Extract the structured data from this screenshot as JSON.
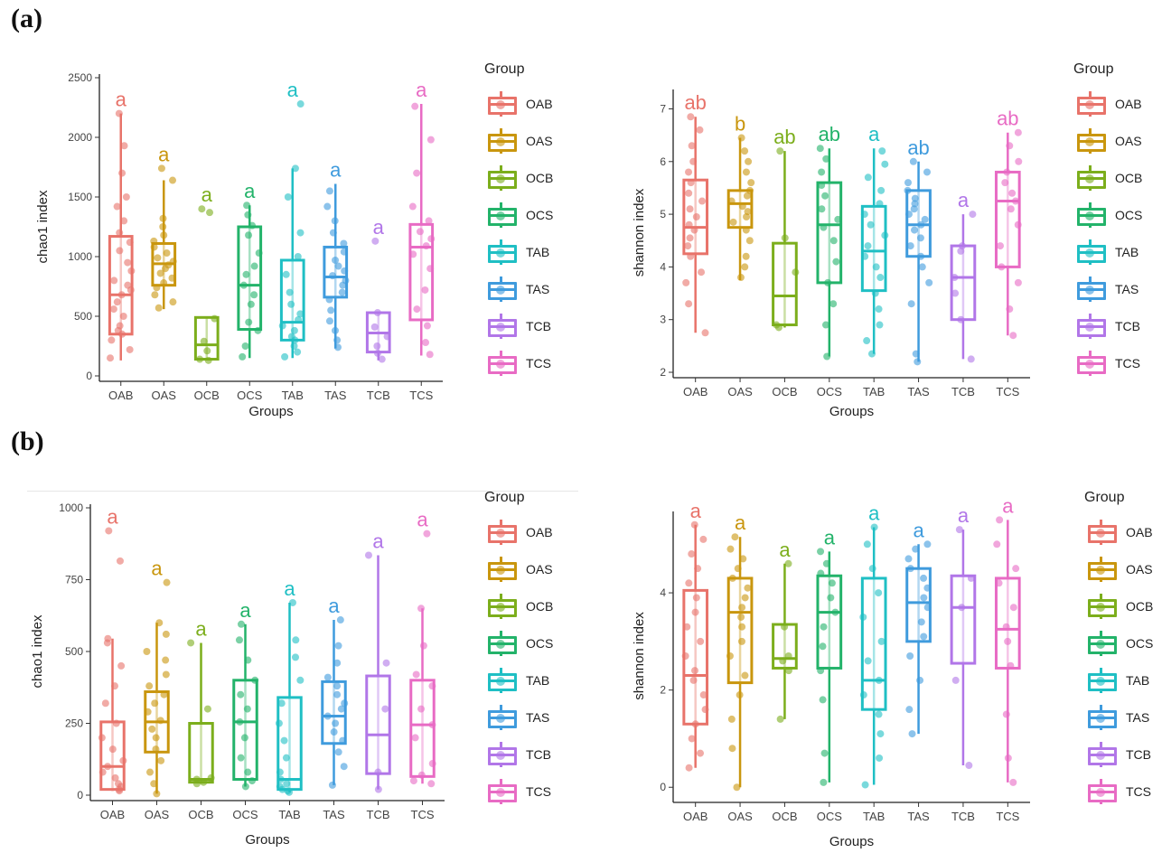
{
  "labels": {
    "a": "(a)",
    "b": "(b)"
  },
  "legend": {
    "title": "Group",
    "items": [
      "OAB",
      "OAS",
      "OCB",
      "OCS",
      "TAB",
      "TAS",
      "TCB",
      "TCS"
    ]
  },
  "colors": {
    "OAB": "#E8736A",
    "OAS": "#C9960E",
    "OCB": "#7CAE1C",
    "OCS": "#23B36A",
    "TAB": "#1FBFC4",
    "TAS": "#3F9BDD",
    "TCB": "#B176E8",
    "TCS": "#E86BC4"
  },
  "chart_data": [
    {
      "id": "a-chao1",
      "type": "boxplot",
      "xlabel": "Groups",
      "ylabel": "chao1 index",
      "ylim": [
        0,
        2500
      ],
      "yticks": [
        0,
        500,
        1000,
        1500,
        2000,
        2500
      ],
      "categories": [
        "OAB",
        "OAS",
        "OCB",
        "OCS",
        "TAB",
        "TAS",
        "TCB",
        "TCS"
      ],
      "boxes": [
        {
          "min": 130,
          "q1": 350,
          "median": 680,
          "q3": 1170,
          "max": 2200,
          "letter": "a",
          "points": [
            150,
            220,
            300,
            350,
            380,
            420,
            500,
            560,
            620,
            680,
            720,
            760,
            800,
            880,
            950,
            1050,
            1120,
            1200,
            1300,
            1420,
            1500,
            1700,
            1930,
            2200
          ]
        },
        {
          "min": 560,
          "q1": 760,
          "median": 940,
          "q3": 1110,
          "max": 1640,
          "letter": "a",
          "points": [
            570,
            620,
            680,
            740,
            780,
            820,
            860,
            900,
            930,
            960,
            990,
            1030,
            1080,
            1130,
            1180,
            1250,
            1320,
            1640,
            1740
          ]
        },
        {
          "min": 130,
          "q1": 140,
          "median": 260,
          "q3": 490,
          "max": 490,
          "letter": "a",
          "points": [
            130,
            140,
            210,
            290,
            480,
            1370,
            1400
          ]
        },
        {
          "min": 150,
          "q1": 390,
          "median": 760,
          "q3": 1250,
          "max": 1430,
          "letter": "a",
          "points": [
            160,
            250,
            380,
            450,
            600,
            680,
            760,
            850,
            920,
            1030,
            1180,
            1260,
            1350,
            1430
          ]
        },
        {
          "min": 150,
          "q1": 300,
          "median": 450,
          "q3": 970,
          "max": 1740,
          "letter": "a",
          "points": [
            160,
            200,
            250,
            300,
            330,
            380,
            420,
            470,
            520,
            600,
            700,
            850,
            1000,
            1200,
            1500,
            1740,
            2280
          ]
        },
        {
          "min": 230,
          "q1": 660,
          "median": 830,
          "q3": 1080,
          "max": 1610,
          "letter": "a",
          "points": [
            240,
            300,
            380,
            460,
            550,
            640,
            700,
            760,
            800,
            840,
            880,
            920,
            970,
            1040,
            1110,
            1200,
            1300,
            1420,
            1550
          ]
        },
        {
          "min": 130,
          "q1": 200,
          "median": 360,
          "q3": 530,
          "max": 530,
          "letter": "a",
          "points": [
            140,
            190,
            250,
            330,
            410,
            530,
            1130
          ]
        },
        {
          "min": 170,
          "q1": 470,
          "median": 1080,
          "q3": 1270,
          "max": 2280,
          "letter": "a",
          "points": [
            180,
            280,
            420,
            560,
            720,
            900,
            1020,
            1090,
            1150,
            1210,
            1300,
            1420,
            1700,
            1980,
            2260
          ]
        }
      ]
    },
    {
      "id": "a-shannon",
      "type": "boxplot",
      "xlabel": "Groups",
      "ylabel": "shannon index",
      "ylim": [
        2,
        7.3
      ],
      "yticks": [
        2,
        3,
        4,
        5,
        6,
        7
      ],
      "categories": [
        "OAB",
        "OAS",
        "OCB",
        "OCS",
        "TAB",
        "TAS",
        "TCB",
        "TCS"
      ],
      "boxes": [
        {
          "min": 2.75,
          "q1": 4.25,
          "median": 4.75,
          "q3": 5.65,
          "max": 6.85,
          "letter": "ab",
          "points": [
            2.75,
            3.3,
            3.7,
            3.9,
            4.2,
            4.4,
            4.55,
            4.7,
            4.8,
            4.95,
            5.1,
            5.25,
            5.4,
            5.6,
            5.8,
            6.0,
            6.3,
            6.6,
            6.85
          ]
        },
        {
          "min": 3.75,
          "q1": 4.75,
          "median": 5.2,
          "q3": 5.45,
          "max": 6.45,
          "letter": "b",
          "points": [
            3.8,
            4.0,
            4.2,
            4.5,
            4.7,
            4.85,
            4.95,
            5.05,
            5.15,
            5.25,
            5.35,
            5.45,
            5.6,
            5.8,
            6.0,
            6.2,
            6.45
          ]
        },
        {
          "min": 2.85,
          "q1": 2.9,
          "median": 3.45,
          "q3": 4.45,
          "max": 6.2,
          "letter": "ab",
          "points": [
            2.85,
            2.9,
            3.9,
            4.55,
            6.2
          ]
        },
        {
          "min": 2.3,
          "q1": 3.7,
          "median": 4.8,
          "q3": 5.6,
          "max": 6.25,
          "letter": "ab",
          "points": [
            2.3,
            2.9,
            3.3,
            3.7,
            4.1,
            4.5,
            4.75,
            4.9,
            5.1,
            5.35,
            5.55,
            5.8,
            6.05,
            6.25
          ]
        },
        {
          "min": 2.35,
          "q1": 3.55,
          "median": 4.3,
          "q3": 5.15,
          "max": 6.25,
          "letter": "a",
          "points": [
            2.35,
            2.6,
            2.9,
            3.2,
            3.5,
            3.8,
            4.0,
            4.2,
            4.4,
            4.6,
            4.8,
            5.0,
            5.2,
            5.45,
            5.7,
            5.95,
            6.2
          ]
        },
        {
          "min": 2.2,
          "q1": 4.2,
          "median": 4.8,
          "q3": 5.45,
          "max": 6.0,
          "letter": "ab",
          "points": [
            2.2,
            2.35,
            3.3,
            3.7,
            4.0,
            4.2,
            4.4,
            4.55,
            4.7,
            4.8,
            4.9,
            5.0,
            5.1,
            5.2,
            5.3,
            5.45,
            5.6,
            5.8,
            6.0
          ]
        },
        {
          "min": 2.25,
          "q1": 3.0,
          "median": 3.8,
          "q3": 4.4,
          "max": 5.0,
          "letter": "a",
          "points": [
            2.25,
            3.0,
            3.5,
            3.8,
            4.3,
            4.4,
            5.0
          ]
        },
        {
          "min": 2.7,
          "q1": 4.0,
          "median": 5.25,
          "q3": 5.8,
          "max": 6.55,
          "letter": "ab",
          "points": [
            2.7,
            3.2,
            3.7,
            4.0,
            4.4,
            4.8,
            5.1,
            5.25,
            5.4,
            5.6,
            5.8,
            6.0,
            6.3,
            6.55
          ]
        }
      ]
    },
    {
      "id": "b-chao1",
      "type": "boxplot",
      "xlabel": "Groups",
      "ylabel": "chao1 index",
      "ylim": [
        0,
        1000
      ],
      "yticks": [
        0,
        250,
        500,
        750,
        1000
      ],
      "categories": [
        "OAB",
        "OAS",
        "OCB",
        "OCS",
        "TAB",
        "TAS",
        "TCB",
        "TCS"
      ],
      "boxes": [
        {
          "min": 15,
          "q1": 20,
          "median": 100,
          "q3": 255,
          "max": 545,
          "letter": "a",
          "points": [
            15,
            20,
            30,
            40,
            60,
            80,
            100,
            120,
            160,
            200,
            250,
            320,
            380,
            450,
            530,
            545,
            815,
            920
          ]
        },
        {
          "min": 5,
          "q1": 150,
          "median": 255,
          "q3": 360,
          "max": 600,
          "letter": "a",
          "points": [
            5,
            40,
            80,
            120,
            160,
            200,
            230,
            260,
            290,
            320,
            350,
            380,
            420,
            470,
            500,
            560,
            600,
            740
          ]
        },
        {
          "min": 40,
          "q1": 45,
          "median": 55,
          "q3": 250,
          "max": 530,
          "letter": "a",
          "points": [
            40,
            45,
            55,
            60,
            300,
            530
          ]
        },
        {
          "min": 30,
          "q1": 55,
          "median": 255,
          "q3": 400,
          "max": 595,
          "letter": "a",
          "points": [
            30,
            50,
            80,
            130,
            200,
            255,
            300,
            350,
            400,
            470,
            540,
            595
          ]
        },
        {
          "min": 10,
          "q1": 20,
          "median": 55,
          "q3": 340,
          "max": 670,
          "letter": "a",
          "points": [
            10,
            15,
            20,
            30,
            40,
            55,
            80,
            130,
            190,
            250,
            320,
            400,
            480,
            540,
            670
          ]
        },
        {
          "min": 35,
          "q1": 180,
          "median": 275,
          "q3": 395,
          "max": 610,
          "letter": "a",
          "points": [
            35,
            100,
            150,
            190,
            220,
            250,
            275,
            300,
            320,
            350,
            380,
            410,
            460,
            520,
            610
          ]
        },
        {
          "min": 20,
          "q1": 75,
          "median": 210,
          "q3": 415,
          "max": 835,
          "letter": "a",
          "points": [
            20,
            80,
            300,
            460,
            835
          ]
        },
        {
          "min": 40,
          "q1": 65,
          "median": 245,
          "q3": 400,
          "max": 650,
          "letter": "a",
          "points": [
            40,
            50,
            70,
            110,
            200,
            245,
            300,
            380,
            420,
            520,
            650,
            910
          ]
        }
      ]
    },
    {
      "id": "b-shannon",
      "type": "boxplot",
      "xlabel": "Groups",
      "ylabel": "shannon index",
      "ylim": [
        -0.2,
        5.6
      ],
      "yticks": [
        0,
        2,
        4
      ],
      "categories": [
        "OAB",
        "OAS",
        "OCB",
        "OCS",
        "TAB",
        "TAS",
        "TCB",
        "TCS"
      ],
      "boxes": [
        {
          "min": 0.4,
          "q1": 1.3,
          "median": 2.3,
          "q3": 4.05,
          "max": 5.4,
          "letter": "a",
          "points": [
            0.4,
            0.7,
            1.0,
            1.3,
            1.6,
            1.9,
            2.2,
            2.4,
            2.7,
            3.0,
            3.3,
            3.6,
            3.9,
            4.2,
            4.5,
            4.8,
            5.1,
            5.4
          ]
        },
        {
          "min": 0.0,
          "q1": 2.15,
          "median": 3.6,
          "q3": 4.3,
          "max": 5.15,
          "letter": "a",
          "points": [
            0.0,
            0.8,
            1.4,
            1.9,
            2.3,
            2.7,
            3.0,
            3.3,
            3.5,
            3.7,
            3.9,
            4.1,
            4.3,
            4.5,
            4.7,
            4.9,
            5.15
          ]
        },
        {
          "min": 1.4,
          "q1": 2.45,
          "median": 2.65,
          "q3": 3.35,
          "max": 4.6,
          "letter": "a",
          "points": [
            1.4,
            2.4,
            2.6,
            2.7,
            3.3,
            4.6
          ]
        },
        {
          "min": 0.1,
          "q1": 2.45,
          "median": 3.6,
          "q3": 4.35,
          "max": 4.85,
          "letter": "a",
          "points": [
            0.1,
            0.7,
            1.8,
            2.4,
            2.9,
            3.3,
            3.6,
            3.9,
            4.2,
            4.4,
            4.6,
            4.85
          ]
        },
        {
          "min": 0.05,
          "q1": 1.6,
          "median": 2.2,
          "q3": 4.3,
          "max": 5.35,
          "letter": "a",
          "points": [
            0.05,
            0.6,
            1.1,
            1.5,
            1.9,
            2.2,
            2.6,
            3.0,
            3.5,
            4.0,
            4.5,
            5.0,
            5.35
          ]
        },
        {
          "min": 1.1,
          "q1": 3.0,
          "median": 3.8,
          "q3": 4.5,
          "max": 5.0,
          "letter": "a",
          "points": [
            1.1,
            1.6,
            2.2,
            2.7,
            3.1,
            3.4,
            3.7,
            3.9,
            4.1,
            4.3,
            4.5,
            4.7,
            4.9,
            5.0
          ]
        },
        {
          "min": 0.45,
          "q1": 2.55,
          "median": 3.7,
          "q3": 4.35,
          "max": 5.3,
          "letter": "a",
          "points": [
            0.45,
            2.2,
            3.7,
            4.3,
            5.3
          ]
        },
        {
          "min": 0.1,
          "q1": 2.45,
          "median": 3.25,
          "q3": 4.3,
          "max": 5.5,
          "letter": "a",
          "points": [
            0.1,
            0.6,
            1.5,
            2.5,
            3.0,
            3.3,
            3.7,
            4.2,
            4.5,
            5.0,
            5.5
          ]
        }
      ]
    }
  ]
}
